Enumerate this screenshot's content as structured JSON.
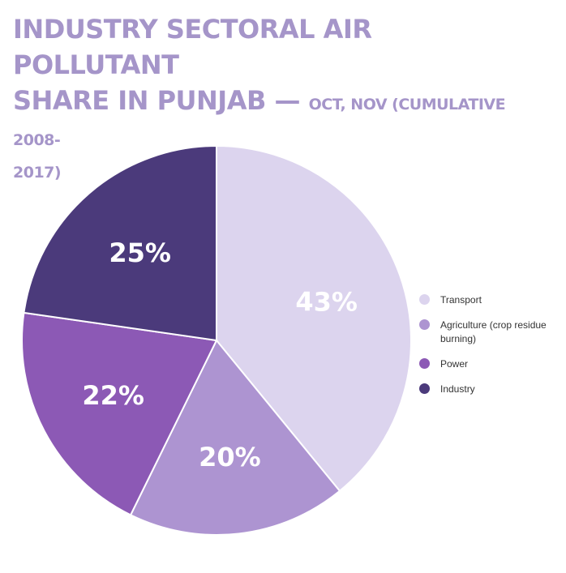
{
  "title": {
    "line1": "INDUSTRY SECTORAL AIR POLLUTANT",
    "line2_main": "SHARE IN PUNJAB — ",
    "line2_sub": "OCT, NOV (CUMULATIVE 2008-",
    "line3": "2017)"
  },
  "chart_data": {
    "type": "pie",
    "title": "INDUSTRY SECTORAL AIR POLLUTANT SHARE IN PUNJAB — OCT, NOV (CUMULATIVE 2008-2017)",
    "legend_position": "right",
    "slices": [
      {
        "label": "Transport",
        "value": 43,
        "display": "43%",
        "color": "#dcd4ee"
      },
      {
        "label": "Agriculture (crop residue burning)",
        "value": 20,
        "display": "20%",
        "color": "#ad94d1"
      },
      {
        "label": "Power",
        "value": 22,
        "display": "22%",
        "color": "#8c59b5"
      },
      {
        "label": "Industry",
        "value": 25,
        "display": "25%",
        "color": "#4b3a7b"
      }
    ]
  }
}
